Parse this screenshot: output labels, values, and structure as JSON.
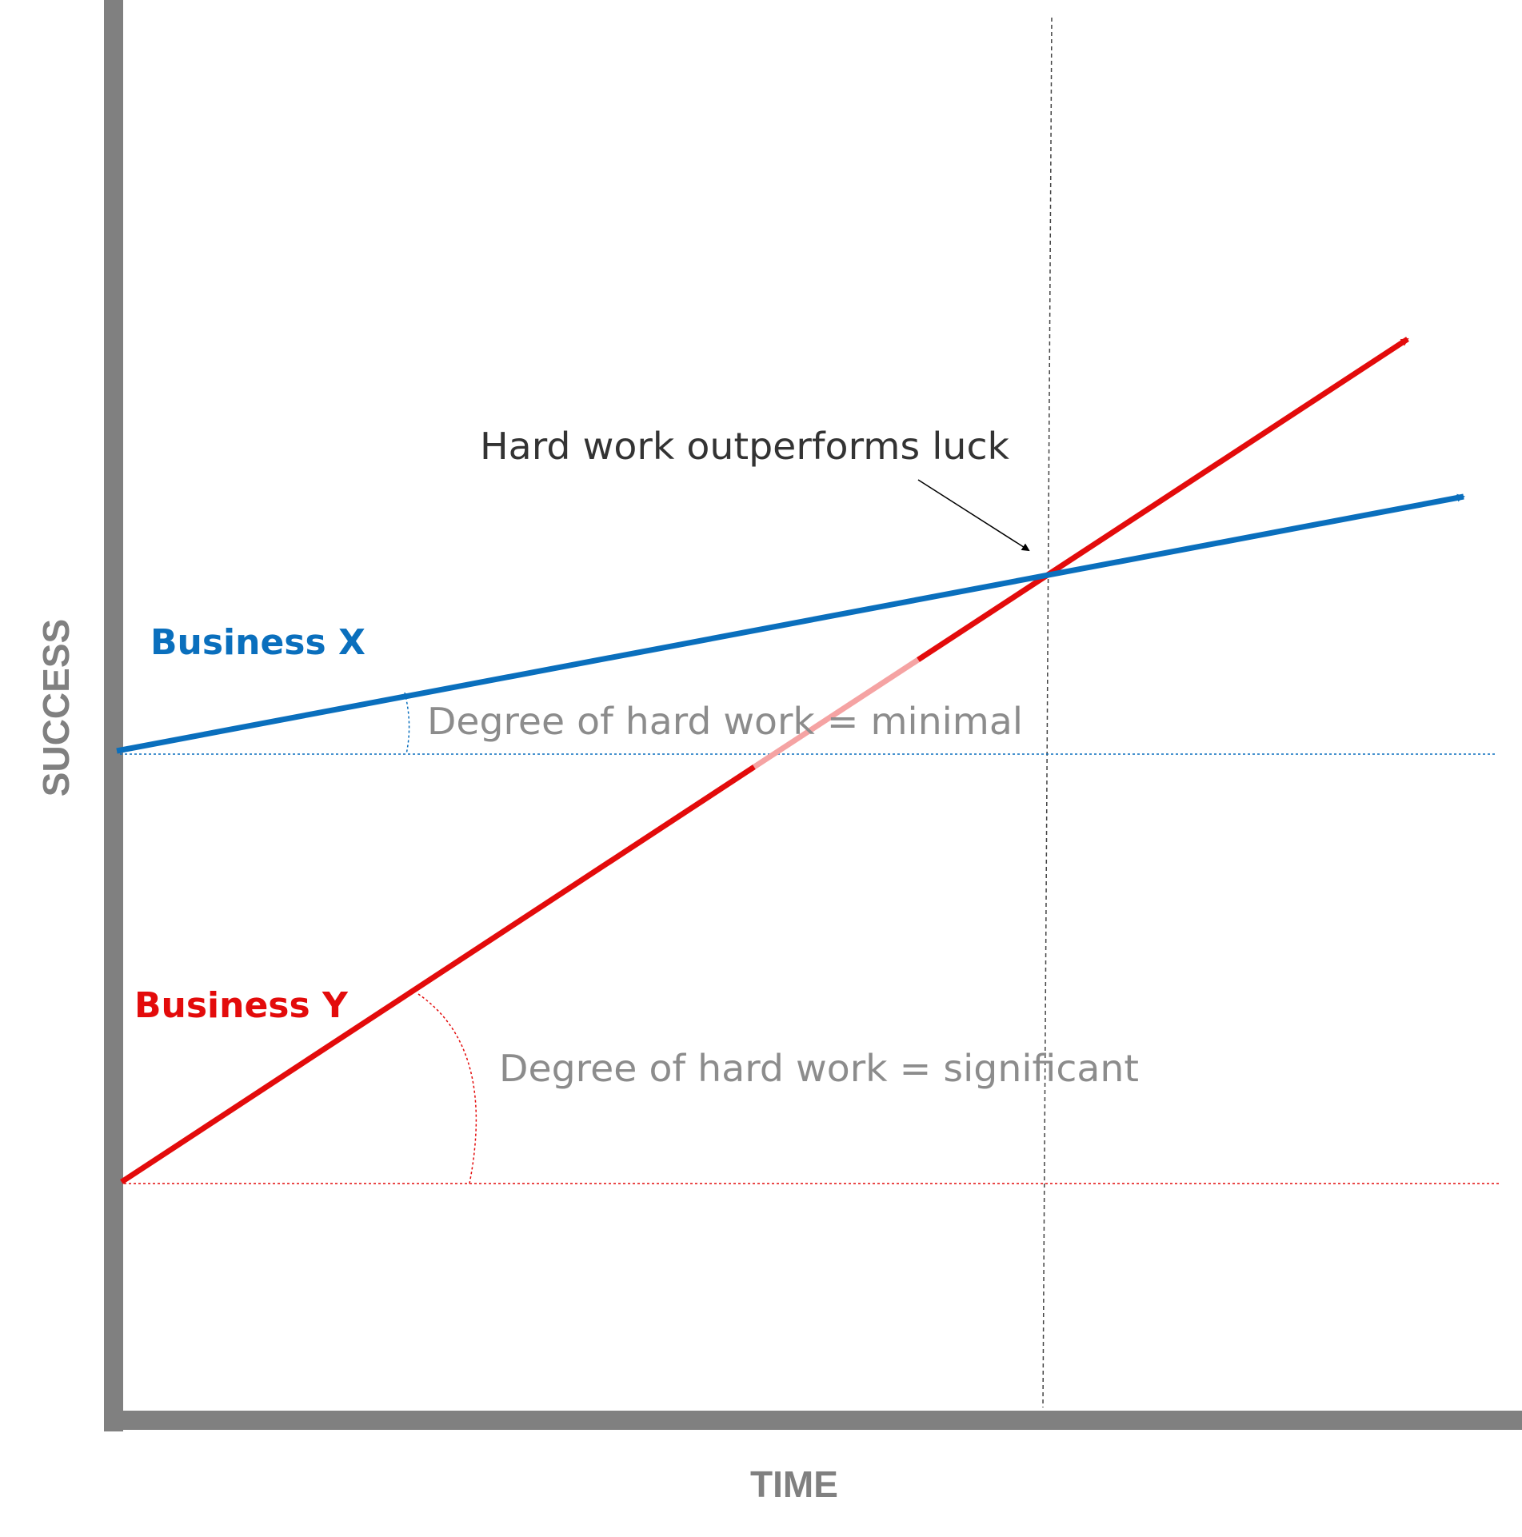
{
  "axes": {
    "y_label": "SUCCESS",
    "x_label": "TIME"
  },
  "series": [
    {
      "name": "Business X",
      "color": "#0a6fbd",
      "slope_note": "Degree of hard work = minimal"
    },
    {
      "name": "Business Y",
      "color": "#e30b0b",
      "slope_note": "Degree of hard work = significant"
    }
  ],
  "annotation": {
    "text": "Hard work outperforms luck"
  },
  "colors": {
    "axis": "#808080",
    "label_gray": "#8c8c8c",
    "annotation_text": "#333333"
  }
}
